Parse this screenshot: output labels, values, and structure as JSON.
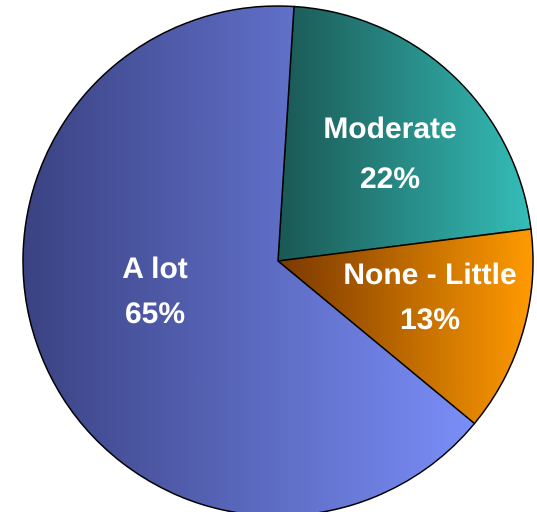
{
  "chart_data": {
    "type": "pie",
    "categories": [
      "Moderate",
      "None - Little",
      "A lot"
    ],
    "values": [
      22,
      13,
      65
    ],
    "value_labels": [
      "22%",
      "13%",
      "65%"
    ],
    "colors": [
      [
        "#1a5753",
        "#35bdb8"
      ],
      [
        "#7a3800",
        "#ff9a00"
      ],
      [
        "#3a4282",
        "#7a8ef8"
      ]
    ]
  }
}
